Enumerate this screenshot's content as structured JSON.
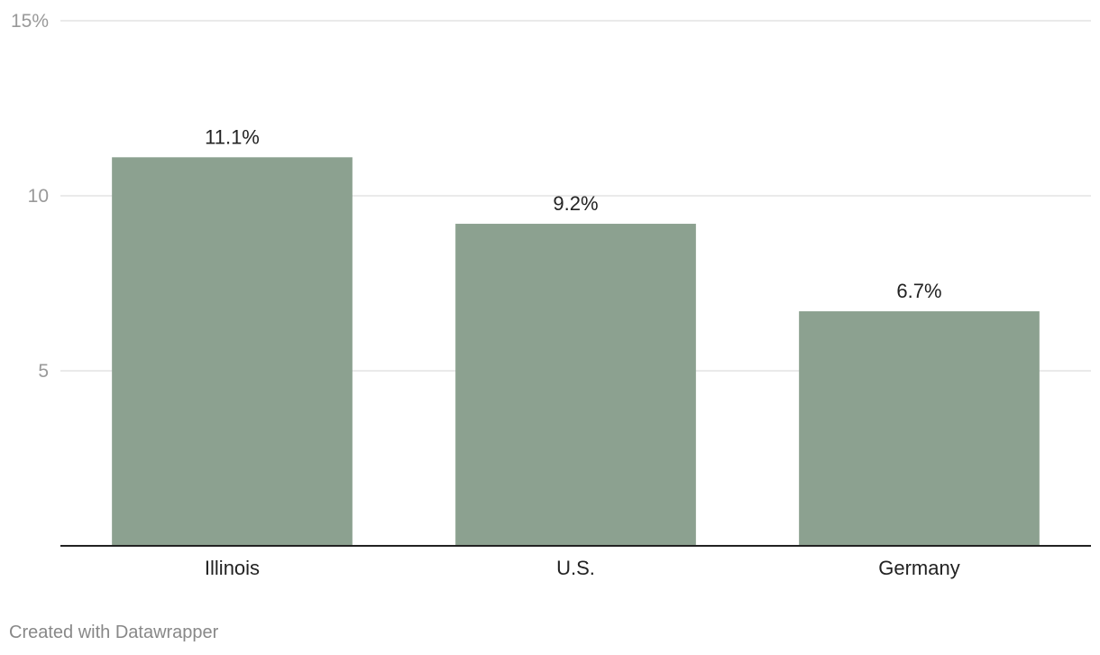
{
  "chart_data": {
    "type": "bar",
    "categories": [
      "Illinois",
      "U.S.",
      "Germany"
    ],
    "values": [
      11.1,
      9.2,
      6.7
    ],
    "value_labels": [
      "11.1%",
      "9.2%",
      "6.7%"
    ],
    "ylim": [
      0,
      15
    ],
    "yticks": [
      5,
      10,
      15
    ],
    "ytick_labels": [
      "5",
      "10",
      "15%"
    ],
    "grid": true,
    "title": "",
    "xlabel": "",
    "ylabel": ""
  },
  "colors": {
    "bar": "#8ca190",
    "grid": "#e3e3e3",
    "axis": "#222222",
    "tick_text": "#999999",
    "label_text": "#222222"
  },
  "footer": {
    "credit": "Created with Datawrapper"
  }
}
